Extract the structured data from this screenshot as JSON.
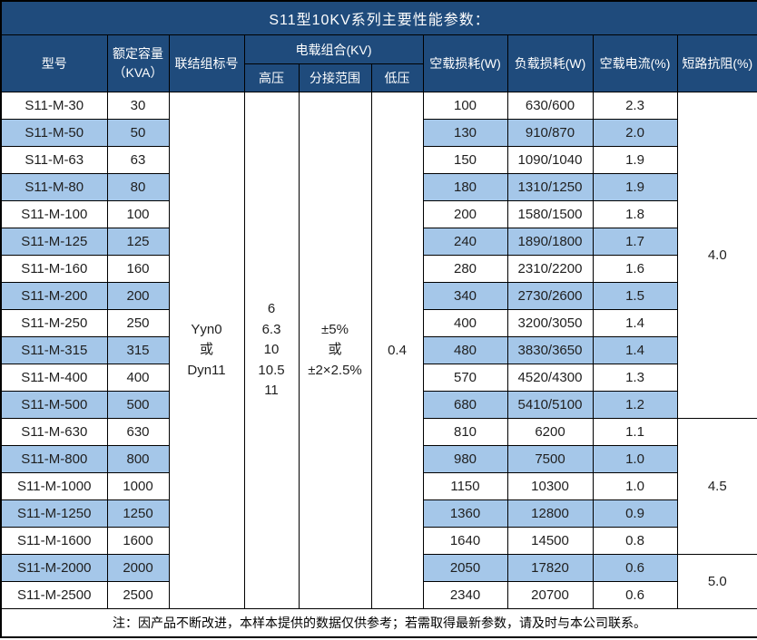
{
  "colors": {
    "header_bg": "#1F4B7C",
    "header_text": "#FFFFFF",
    "stripe_bg": "#A5C7E9",
    "row_bg": "#FFFFFF",
    "border": "#000000",
    "body_text": "#1F1F1F"
  },
  "chart_data": {
    "type": "table",
    "title": "S11型10KV系列主要性能参数：",
    "columns": {
      "model": "型号",
      "capacity": "额定容量\n（KVA）",
      "connection": "联结组标号",
      "load_combo_group": "电载组合(KV)",
      "hv": "高压",
      "tap_range": "分接范围",
      "lv": "低压",
      "no_load_loss": "空载损耗(W)",
      "load_loss": "负载损耗(W)",
      "no_load_current": "空载电流(%)",
      "impedance": "短路抗阻(%)"
    },
    "merged_cells": {
      "connection": "Yyn0\n或\nDyn11",
      "hv": "6\n6.3\n10\n10.5\n11",
      "tap_range": "±5%\n或\n±2×2.5%",
      "lv": "0.4"
    },
    "impedance_groups": [
      {
        "value": "4.0",
        "start": 0,
        "span": 12
      },
      {
        "value": "4.5",
        "start": 12,
        "span": 5
      },
      {
        "value": "5.0",
        "start": 17,
        "span": 2
      }
    ],
    "rows": [
      {
        "model": "S11-M-30",
        "capacity": "30",
        "no_load_loss": "100",
        "load_loss": "630/600",
        "no_load_current": "2.3"
      },
      {
        "model": "S11-M-50",
        "capacity": "50",
        "no_load_loss": "130",
        "load_loss": "910/870",
        "no_load_current": "2.0"
      },
      {
        "model": "S11-M-63",
        "capacity": "63",
        "no_load_loss": "150",
        "load_loss": "1090/1040",
        "no_load_current": "1.9"
      },
      {
        "model": "S11-M-80",
        "capacity": "80",
        "no_load_loss": "180",
        "load_loss": "1310/1250",
        "no_load_current": "1.9"
      },
      {
        "model": "S11-M-100",
        "capacity": "100",
        "no_load_loss": "200",
        "load_loss": "1580/1500",
        "no_load_current": "1.8"
      },
      {
        "model": "S11-M-125",
        "capacity": "125",
        "no_load_loss": "240",
        "load_loss": "1890/1800",
        "no_load_current": "1.7"
      },
      {
        "model": "S11-M-160",
        "capacity": "160",
        "no_load_loss": "280",
        "load_loss": "2310/2200",
        "no_load_current": "1.6"
      },
      {
        "model": "S11-M-200",
        "capacity": "200",
        "no_load_loss": "340",
        "load_loss": "2730/2600",
        "no_load_current": "1.5"
      },
      {
        "model": "S11-M-250",
        "capacity": "250",
        "no_load_loss": "400",
        "load_loss": "3200/3050",
        "no_load_current": "1.4"
      },
      {
        "model": "S11-M-315",
        "capacity": "315",
        "no_load_loss": "480",
        "load_loss": "3830/3650",
        "no_load_current": "1.4"
      },
      {
        "model": "S11-M-400",
        "capacity": "400",
        "no_load_loss": "570",
        "load_loss": "4520/4300",
        "no_load_current": "1.3"
      },
      {
        "model": "S11-M-500",
        "capacity": "500",
        "no_load_loss": "680",
        "load_loss": "5410/5100",
        "no_load_current": "1.2"
      },
      {
        "model": "S11-M-630",
        "capacity": "630",
        "no_load_loss": "810",
        "load_loss": "6200",
        "no_load_current": "1.1"
      },
      {
        "model": "S11-M-800",
        "capacity": "800",
        "no_load_loss": "980",
        "load_loss": "7500",
        "no_load_current": "1.0"
      },
      {
        "model": "S11-M-1000",
        "capacity": "1000",
        "no_load_loss": "1150",
        "load_loss": "10300",
        "no_load_current": "1.0"
      },
      {
        "model": "S11-M-1250",
        "capacity": "1250",
        "no_load_loss": "1360",
        "load_loss": "12800",
        "no_load_current": "0.9"
      },
      {
        "model": "S11-M-1600",
        "capacity": "1600",
        "no_load_loss": "1640",
        "load_loss": "14500",
        "no_load_current": "0.8"
      },
      {
        "model": "S11-M-2000",
        "capacity": "2000",
        "no_load_loss": "2050",
        "load_loss": "17820",
        "no_load_current": "0.6"
      },
      {
        "model": "S11-M-2500",
        "capacity": "2500",
        "no_load_loss": "2340",
        "load_loss": "20700",
        "no_load_current": "0.6"
      }
    ],
    "note": "注：因产品不断改进，本样本提供的数据仅供参考；若需取得最新参数，请及时与本公司联系。"
  }
}
